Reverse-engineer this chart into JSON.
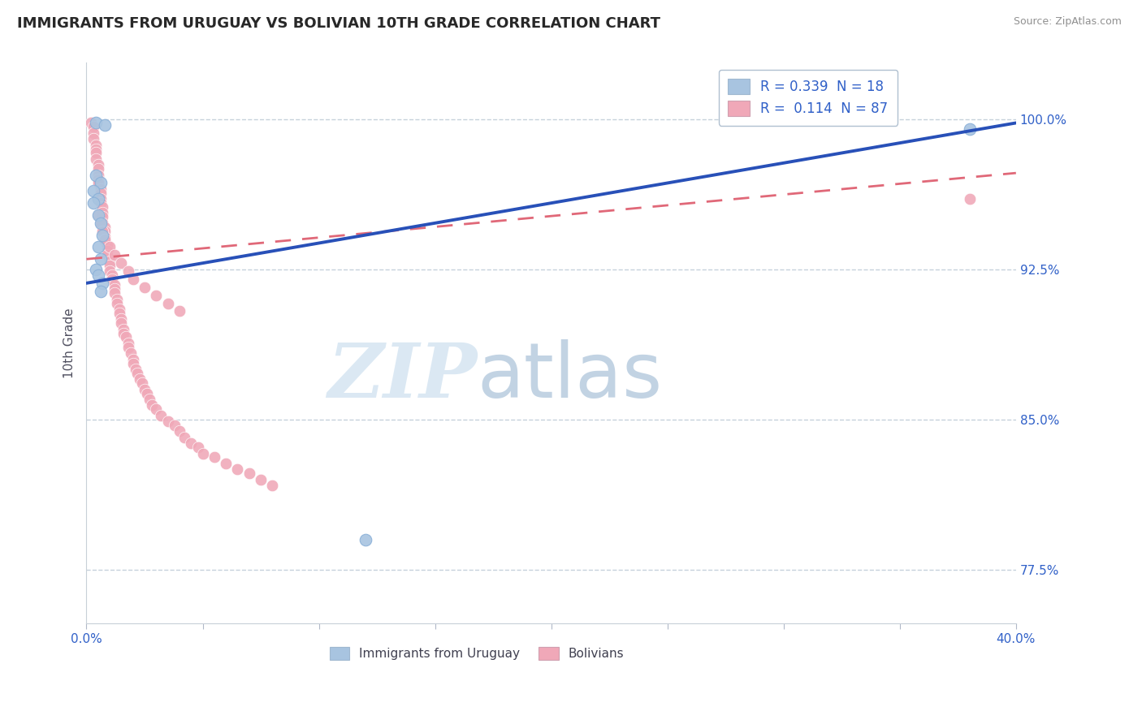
{
  "title": "IMMIGRANTS FROM URUGUAY VS BOLIVIAN 10TH GRADE CORRELATION CHART",
  "source": "Source: ZipAtlas.com",
  "ylabel": "10th Grade",
  "ytick_labels": [
    "77.5%",
    "85.0%",
    "92.5%",
    "100.0%"
  ],
  "ytick_values": [
    0.775,
    0.85,
    0.925,
    1.0
  ],
  "xmin": 0.0,
  "xmax": 0.4,
  "ymin": 0.748,
  "ymax": 1.028,
  "legend_r1": "R = 0.339  N = 18",
  "legend_r2": "R =  0.114  N = 87",
  "color_uruguay": "#a8c4e0",
  "color_bolivia": "#f0a8b8",
  "line_color_uruguay": "#2850b8",
  "line_color_bolivia": "#e06878",
  "watermark_zip": "ZIP",
  "watermark_atlas": "atlas",
  "uruguay_scatter_x": [
    0.004,
    0.008,
    0.004,
    0.006,
    0.003,
    0.005,
    0.003,
    0.005,
    0.006,
    0.007,
    0.005,
    0.006,
    0.004,
    0.005,
    0.007,
    0.006,
    0.38,
    0.12
  ],
  "uruguay_scatter_y": [
    0.998,
    0.997,
    0.972,
    0.968,
    0.964,
    0.96,
    0.958,
    0.952,
    0.948,
    0.942,
    0.936,
    0.93,
    0.925,
    0.922,
    0.918,
    0.914,
    0.995,
    0.79
  ],
  "bolivia_scatter_x": [
    0.002,
    0.003,
    0.003,
    0.003,
    0.004,
    0.004,
    0.004,
    0.004,
    0.005,
    0.005,
    0.005,
    0.005,
    0.005,
    0.006,
    0.006,
    0.006,
    0.006,
    0.007,
    0.007,
    0.007,
    0.007,
    0.008,
    0.008,
    0.008,
    0.008,
    0.009,
    0.009,
    0.009,
    0.01,
    0.01,
    0.01,
    0.011,
    0.011,
    0.012,
    0.012,
    0.012,
    0.013,
    0.013,
    0.014,
    0.014,
    0.015,
    0.015,
    0.016,
    0.016,
    0.017,
    0.018,
    0.018,
    0.019,
    0.02,
    0.02,
    0.021,
    0.022,
    0.023,
    0.024,
    0.025,
    0.026,
    0.027,
    0.028,
    0.03,
    0.032,
    0.035,
    0.038,
    0.04,
    0.042,
    0.045,
    0.048,
    0.05,
    0.055,
    0.06,
    0.065,
    0.07,
    0.075,
    0.08,
    0.005,
    0.006,
    0.007,
    0.008,
    0.01,
    0.012,
    0.015,
    0.018,
    0.02,
    0.025,
    0.03,
    0.035,
    0.04,
    0.38
  ],
  "bolivia_scatter_y": [
    0.998,
    0.996,
    0.993,
    0.99,
    0.987,
    0.985,
    0.983,
    0.98,
    0.977,
    0.975,
    0.972,
    0.97,
    0.968,
    0.965,
    0.963,
    0.96,
    0.958,
    0.956,
    0.953,
    0.951,
    0.948,
    0.946,
    0.944,
    0.941,
    0.939,
    0.937,
    0.934,
    0.932,
    0.929,
    0.927,
    0.924,
    0.922,
    0.92,
    0.917,
    0.915,
    0.913,
    0.91,
    0.908,
    0.905,
    0.903,
    0.9,
    0.898,
    0.895,
    0.893,
    0.891,
    0.888,
    0.886,
    0.883,
    0.88,
    0.878,
    0.875,
    0.873,
    0.87,
    0.868,
    0.865,
    0.863,
    0.86,
    0.857,
    0.855,
    0.852,
    0.849,
    0.847,
    0.844,
    0.841,
    0.838,
    0.836,
    0.833,
    0.831,
    0.828,
    0.825,
    0.823,
    0.82,
    0.817,
    0.952,
    0.948,
    0.944,
    0.94,
    0.936,
    0.932,
    0.928,
    0.924,
    0.92,
    0.916,
    0.912,
    0.908,
    0.904,
    0.96
  ],
  "line_uru_x0": 0.0,
  "line_uru_y0": 0.918,
  "line_uru_x1": 0.4,
  "line_uru_y1": 0.998,
  "line_bol_x0": 0.0,
  "line_bol_y0": 0.93,
  "line_bol_x1": 0.4,
  "line_bol_y1": 0.973
}
